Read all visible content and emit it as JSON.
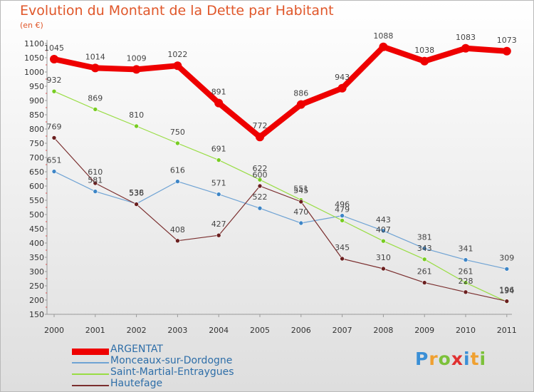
{
  "header": {
    "title": "Evolution du Montant de la Dette par Habitant",
    "unit": "(en €)"
  },
  "logo": {
    "text": "Proxiti",
    "colors": [
      "#3a8fd6",
      "#f0a030",
      "#7cc13a",
      "#e03030",
      "#3a8fd6",
      "#f0a030",
      "#7cc13a"
    ]
  },
  "chart_data": {
    "type": "line",
    "title": "Evolution du Montant de la Dette par Habitant",
    "ylabel": "(en €)",
    "xlabel": "",
    "categories": [
      "2000",
      "2001",
      "2002",
      "2003",
      "2004",
      "2005",
      "2006",
      "2007",
      "2008",
      "2009",
      "2010",
      "2011"
    ],
    "ylim": [
      150,
      1100
    ],
    "yticks": [
      150,
      200,
      250,
      300,
      350,
      400,
      450,
      500,
      550,
      600,
      650,
      700,
      750,
      800,
      850,
      900,
      950,
      1000,
      1050,
      1100
    ],
    "grid": false,
    "legend_position": "bottom-left",
    "series": [
      {
        "name": "ARGENTAT",
        "color": "#ee0000",
        "marker": "#ee0000",
        "width": 8,
        "values": [
          1045,
          1014,
          1009,
          1022,
          891,
          772,
          886,
          943,
          1088,
          1038,
          1083,
          1073
        ]
      },
      {
        "name": "Monceaux-sur-Dordogne",
        "color": "#6fa3d4",
        "marker": "#3d85c6",
        "width": 1.2,
        "values": [
          651,
          581,
          538,
          616,
          571,
          522,
          470,
          496,
          443,
          381,
          341,
          309
        ]
      },
      {
        "name": "Saint-Martial-Entraygues",
        "color": "#99dd44",
        "marker": "#77cc22",
        "width": 1.2,
        "values": [
          932,
          869,
          810,
          750,
          691,
          622,
          551,
          479,
          407,
          343,
          261,
          194
        ]
      },
      {
        "name": "Hautefage",
        "color": "#7a2e2e",
        "marker": "#6a1f1f",
        "width": 1.2,
        "values": [
          769,
          610,
          536,
          408,
          427,
          600,
          545,
          345,
          310,
          261,
          228,
          196
        ]
      }
    ]
  }
}
